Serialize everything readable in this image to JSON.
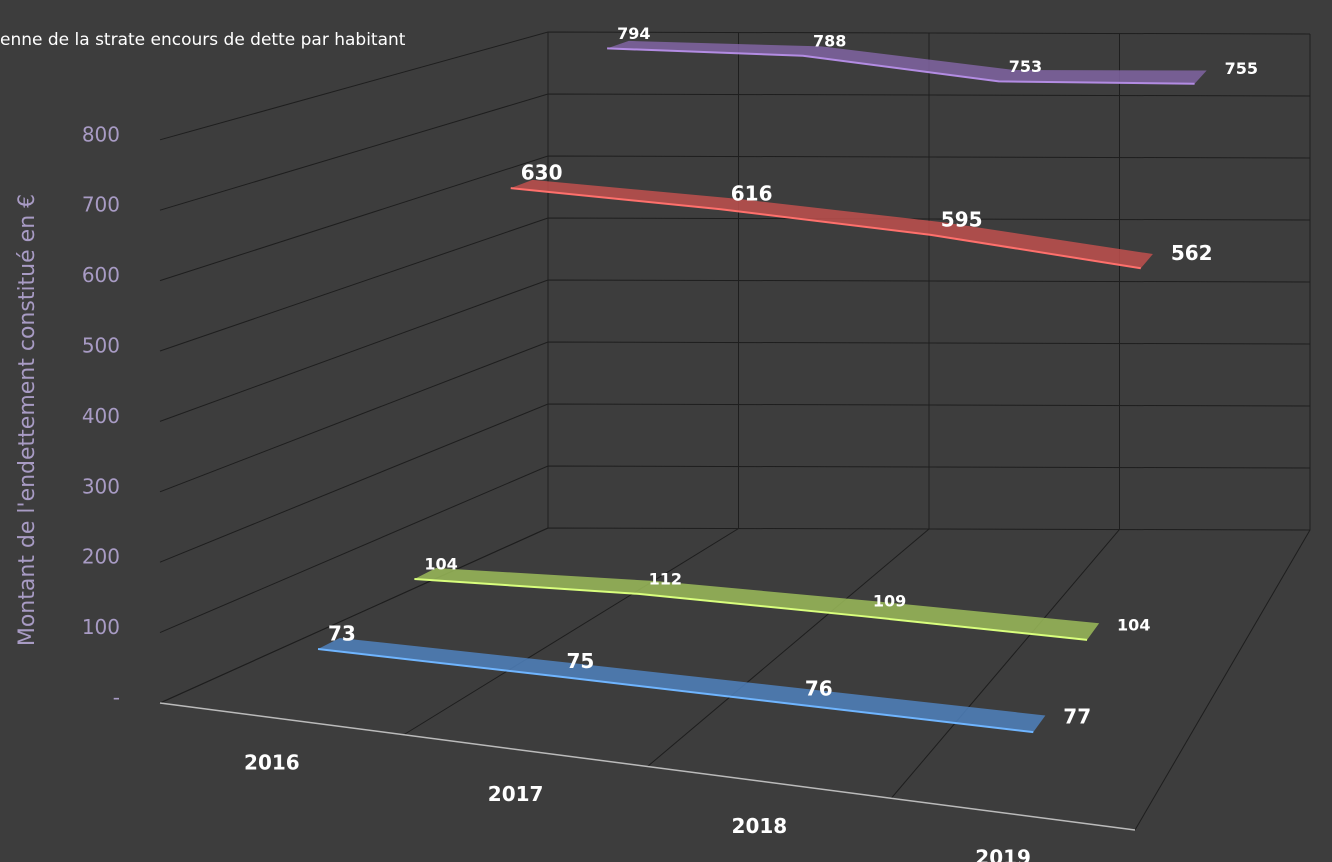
{
  "chart_data": {
    "type": "line3d",
    "y_axis_label": "Montant de l'endettement constitué en €",
    "categories": [
      "2016",
      "2017",
      "2018",
      "2019"
    ],
    "series": [
      {
        "color": "#4f81bd",
        "values": [
          73,
          75,
          76,
          77
        ]
      },
      {
        "color": "#9bbb59",
        "values": [
          104,
          112,
          109,
          104
        ]
      },
      {
        "color": "#c0504d",
        "values": [
          630,
          616,
          595,
          562
        ]
      },
      {
        "name": "enne de la strate encours de dette par habitant",
        "color": "#8064a2",
        "values": [
          794,
          788,
          753,
          755
        ]
      }
    ],
    "ylim": [
      0,
      800
    ],
    "yticks": [
      {
        "value": 0,
        "label": "-"
      },
      100,
      200,
      300,
      400,
      500,
      600,
      700,
      800
    ],
    "grid": true
  }
}
